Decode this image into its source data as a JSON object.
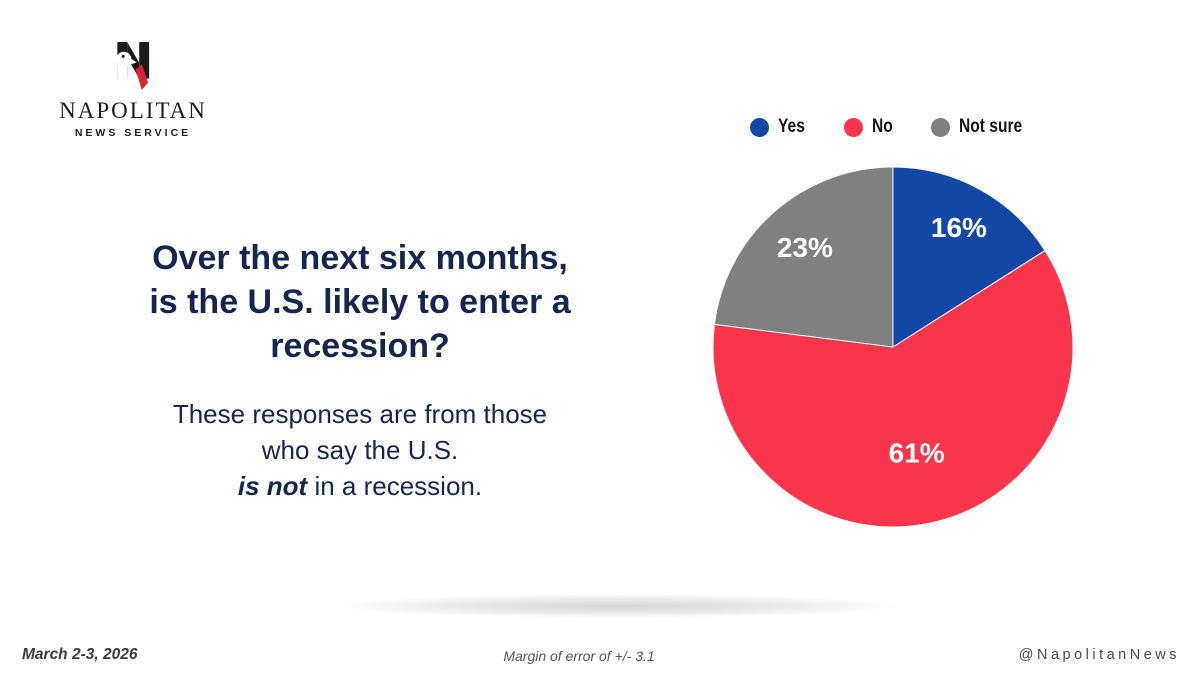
{
  "brand": {
    "name": "NAPOLITAN",
    "tagline": "NEWS SERVICE"
  },
  "question": {
    "title_lines": [
      "Over the next six months,",
      "is the U.S. likely to enter a",
      "recession?"
    ],
    "subtitle_line1": "These responses are from those",
    "subtitle_line2": "who say the U.S.",
    "subtitle_line3_bold": "is not",
    "subtitle_line3_rest": " in a recession."
  },
  "chart_data": {
    "type": "pie",
    "title": "Over the next six months, is the U.S. likely to enter a recession?",
    "categories": [
      "Yes",
      "No",
      "Not sure"
    ],
    "values": [
      16,
      61,
      23
    ],
    "labels": [
      "16%",
      "61%",
      "23%"
    ],
    "colors": [
      "#1347A5",
      "#F8354B",
      "#808080"
    ],
    "legend_position": "top",
    "start_angle_deg": 0,
    "direction": "clockwise",
    "label_color": "#FFFFFF"
  },
  "footer": {
    "date": "March 2-3, 2026",
    "margin_of_error": "Margin of error of +/- 3.1",
    "handle": "@NapolitanNews"
  },
  "colors": {
    "headline_navy": "#142650",
    "logo_black": "#1B1B1B",
    "logo_red": "#DF2330"
  }
}
